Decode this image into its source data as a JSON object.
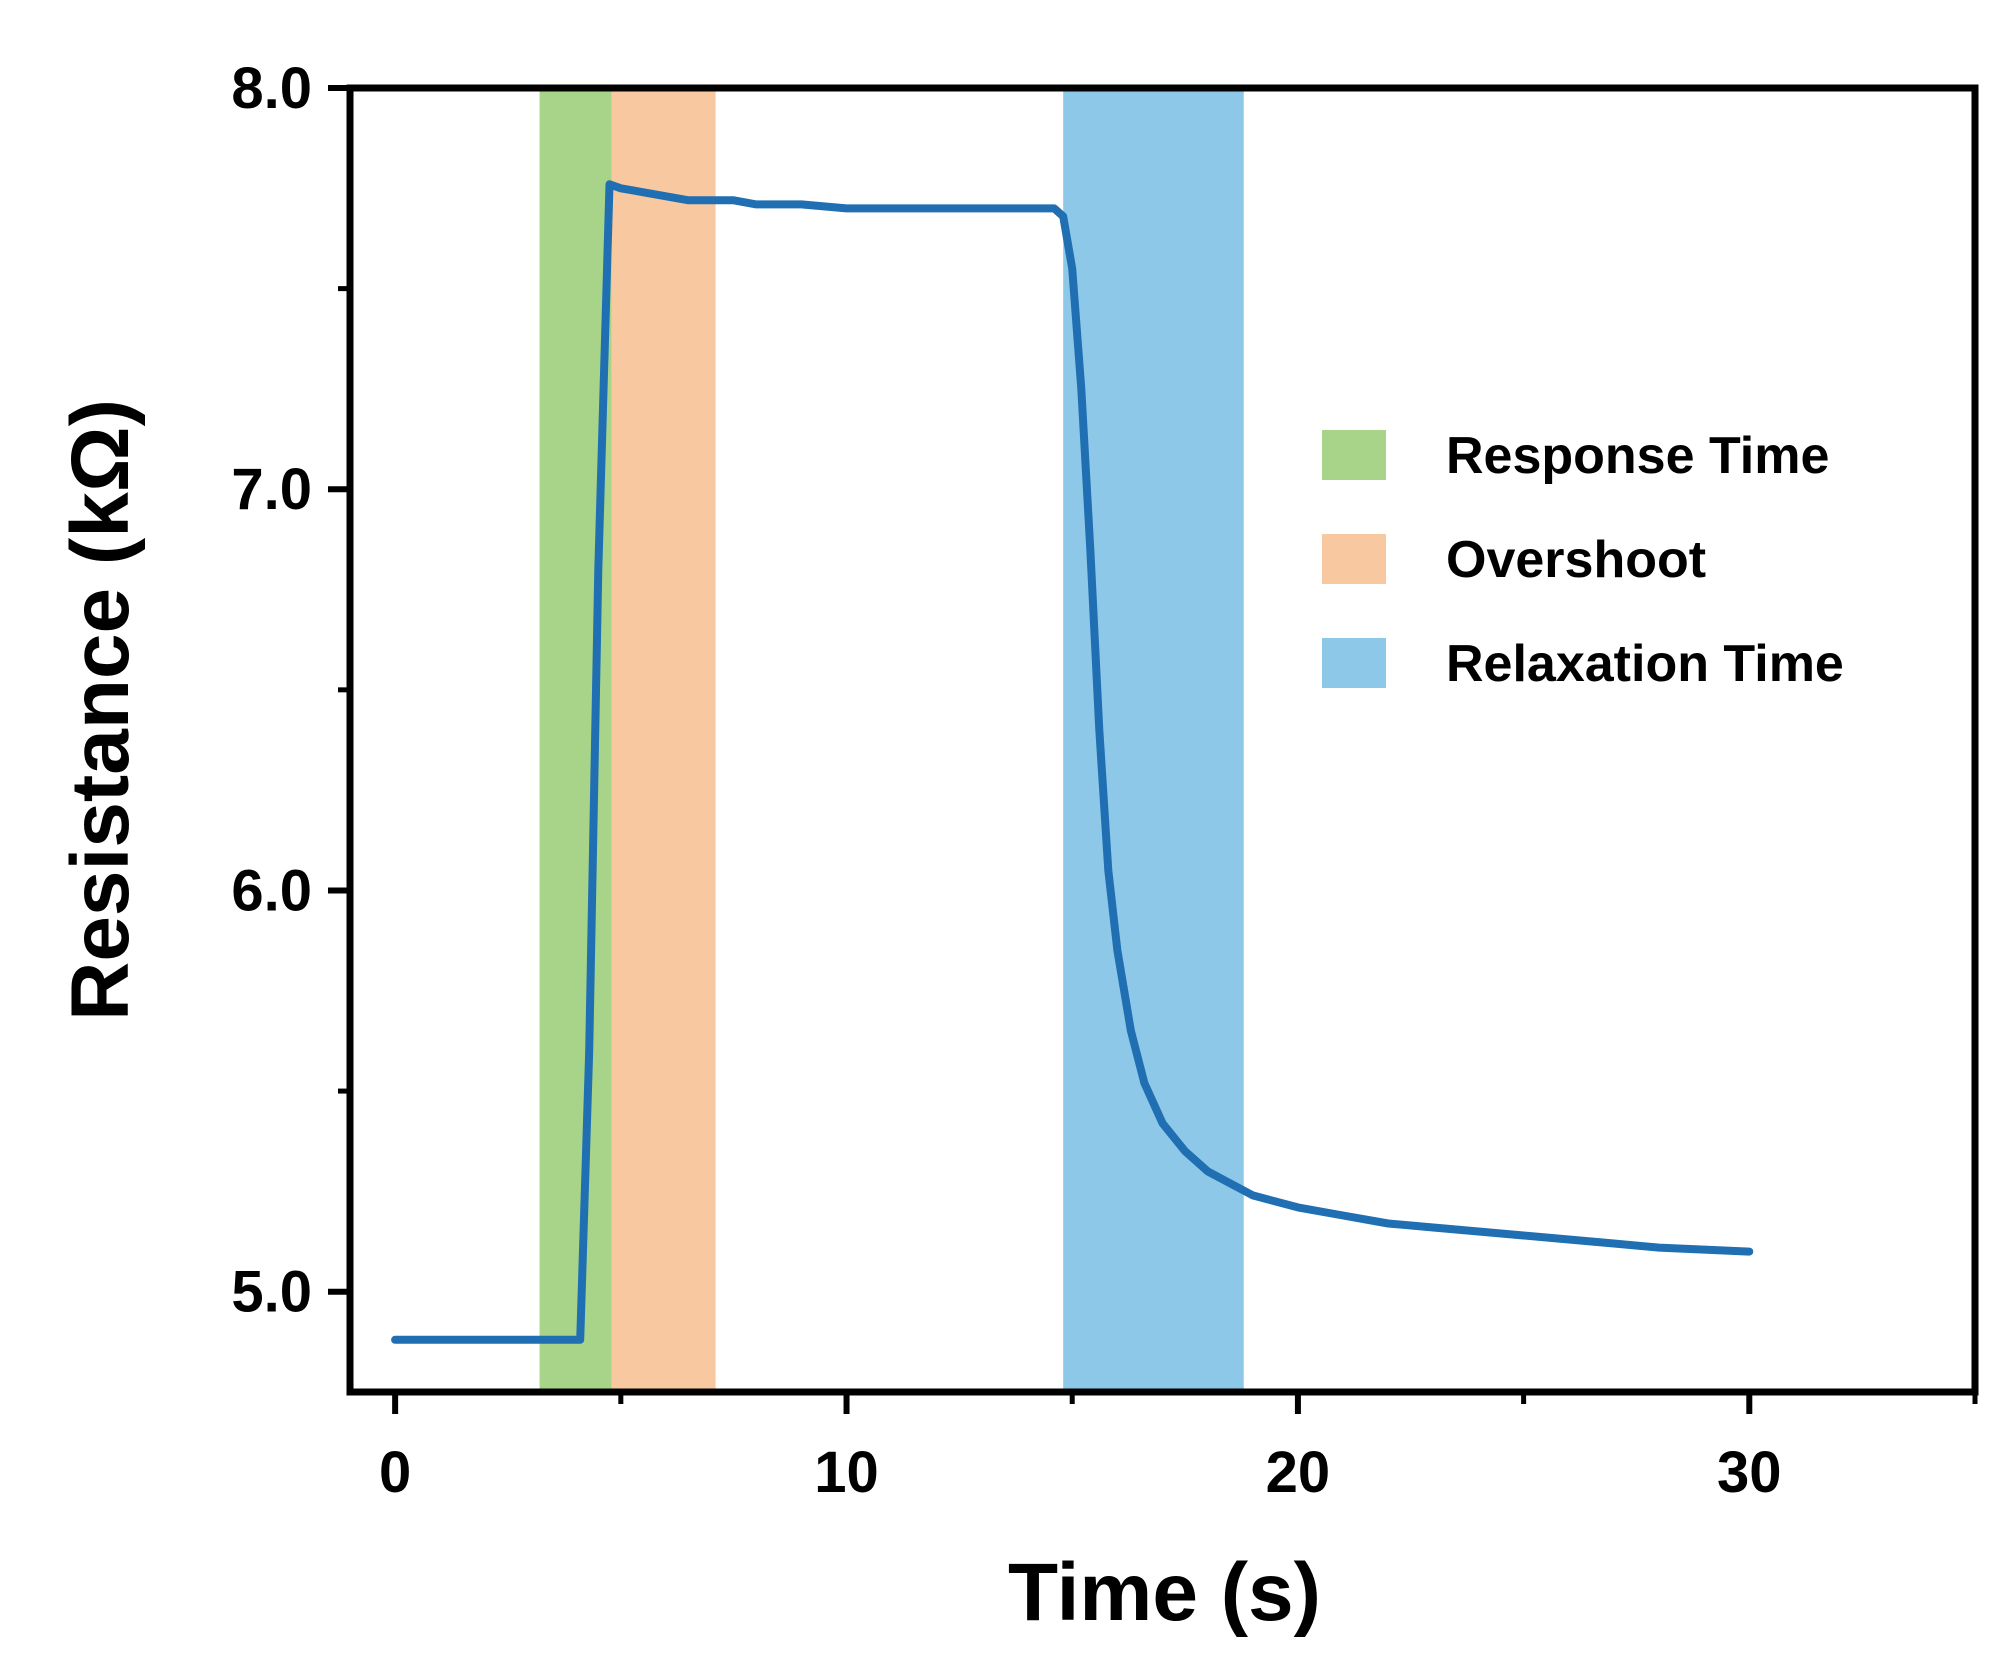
{
  "chart_data": {
    "type": "line",
    "title": "",
    "xlabel": "Time (s)",
    "ylabel": "Resistance (kΩ)",
    "xlim": [
      -1,
      35
    ],
    "ylim": [
      4.75,
      8.0
    ],
    "x_ticks": [
      0,
      10,
      20,
      30
    ],
    "x_minor_ticks": [
      5,
      15,
      25,
      35
    ],
    "x_tick_labels": [
      "0",
      "10",
      "20",
      "30"
    ],
    "y_ticks": [
      5.0,
      6.0,
      7.0,
      8.0
    ],
    "y_minor_ticks": [
      5.5,
      6.5,
      7.5
    ],
    "y_tick_labels": [
      "5.0",
      "6.0",
      "7.0",
      "8.0"
    ],
    "grid": false,
    "legend_position": "right",
    "regions": [
      {
        "name": "Response Time",
        "x_start": 3.2,
        "x_end": 4.8,
        "color": "#a8d48a"
      },
      {
        "name": "Overshoot",
        "x_start": 4.8,
        "x_end": 7.1,
        "color": "#f8c9a0"
      },
      {
        "name": "Relaxation Time",
        "x_start": 14.8,
        "x_end": 18.8,
        "color": "#8ec8e8"
      }
    ],
    "series": [
      {
        "name": "Resistance",
        "color": "#1f6fb2",
        "x": [
          0,
          1,
          2,
          3,
          3.6,
          4.0,
          4.1,
          4.3,
          4.5,
          4.75,
          5.0,
          5.5,
          6.0,
          6.5,
          7.0,
          7.5,
          8.0,
          9.0,
          10.0,
          11.0,
          12.0,
          13.0,
          14.0,
          14.6,
          14.8,
          15.0,
          15.2,
          15.4,
          15.6,
          15.8,
          16.0,
          16.3,
          16.6,
          17.0,
          17.5,
          18.0,
          18.5,
          19.0,
          20.0,
          21.0,
          22.0,
          23.0,
          24.0,
          25.0,
          26.0,
          27.0,
          28.0,
          29.0,
          30.0
        ],
        "y": [
          4.88,
          4.88,
          4.88,
          4.88,
          4.88,
          4.88,
          4.88,
          5.6,
          6.8,
          7.76,
          7.75,
          7.74,
          7.73,
          7.72,
          7.72,
          7.72,
          7.71,
          7.71,
          7.7,
          7.7,
          7.7,
          7.7,
          7.7,
          7.7,
          7.68,
          7.55,
          7.25,
          6.85,
          6.4,
          6.05,
          5.85,
          5.65,
          5.52,
          5.42,
          5.35,
          5.3,
          5.27,
          5.24,
          5.21,
          5.19,
          5.17,
          5.16,
          5.15,
          5.14,
          5.13,
          5.12,
          5.11,
          5.105,
          5.1
        ]
      }
    ]
  }
}
